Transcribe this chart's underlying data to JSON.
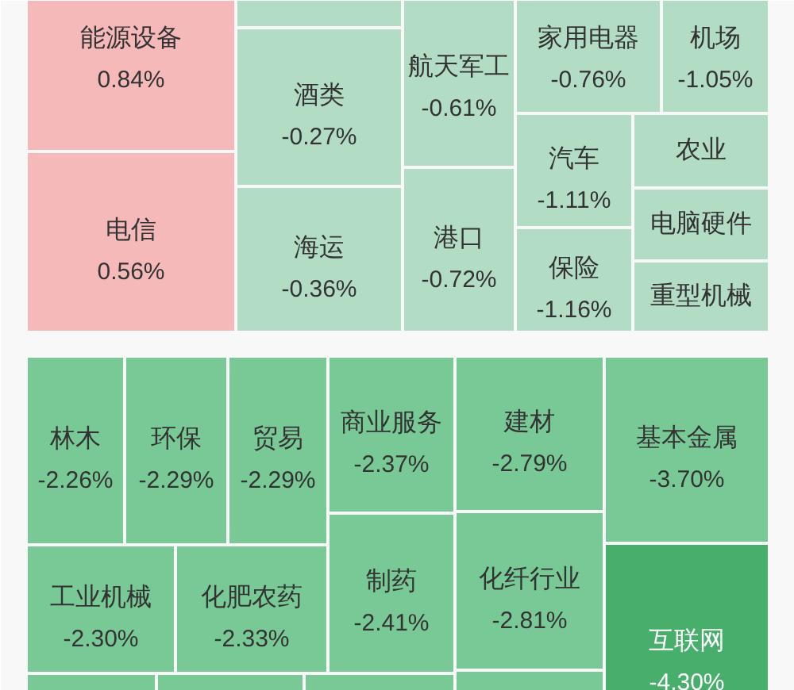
{
  "chart_data": {
    "type": "other",
    "categories": [
      "能源设备",
      "电信",
      null,
      "酒类",
      "海运",
      "航天军工",
      "港口",
      "家用电器",
      "机场",
      "汽车",
      "保险",
      "农业",
      "电脑硬件",
      "重型机械",
      "林木",
      "环保",
      "贸易",
      "工业机械",
      "化肥农药",
      null,
      null,
      null,
      "商业服务",
      "制药",
      "建材",
      "化纤行业",
      null,
      "基本金属",
      "互联网"
    ],
    "values": [
      0.84,
      0.56,
      null,
      -0.27,
      -0.36,
      -0.61,
      -0.72,
      -0.76,
      -1.05,
      -1.11,
      -1.16,
      null,
      null,
      null,
      -2.26,
      -2.29,
      -2.29,
      -2.3,
      -2.33,
      null,
      null,
      null,
      -2.37,
      -2.41,
      -2.79,
      -2.81,
      null,
      -3.7,
      -4.3
    ],
    "value_labels": [
      "0.84%",
      "0.56%",
      null,
      "-0.27%",
      "-0.36%",
      "-0.61%",
      "-0.72%",
      "-0.76%",
      "-1.05%",
      "-1.11%",
      "-1.16%",
      null,
      null,
      null,
      "-2.26%",
      "-2.29%",
      "-2.29%",
      "-2.30%",
      "-2.33%",
      null,
      null,
      null,
      "-2.37%",
      "-2.41%",
      "-2.79%",
      "-2.81%",
      null,
      "-3.70%",
      "-4.30%"
    ],
    "colors": [
      "#f5b9b9",
      "#f5b9b9",
      "#b2dcc3",
      "#b2dcc3",
      "#b2dcc3",
      "#b2dcc3",
      "#b2dcc3",
      "#b2dcc3",
      "#b2dcc3",
      "#b2dcc3",
      "#b2dcc3",
      "#b2dcc3",
      "#b2dcc3",
      "#b2dcc3",
      "#78c996",
      "#78c996",
      "#78c996",
      "#78c996",
      "#78c996",
      "#78c996",
      "#78c996",
      "#78c996",
      "#78c996",
      "#78c996",
      "#78c996",
      "#78c996",
      "#78c996",
      "#78c996",
      "#48ae6b"
    ]
  }
}
